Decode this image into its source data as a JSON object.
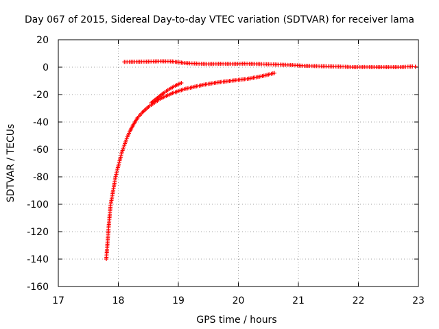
{
  "chart_data": {
    "type": "scatter",
    "title": "Day 067 of 2015, Sidereal Day-to-day VTEC variation (SDTVAR) for receiver lama",
    "xlabel": "GPS time / hours",
    "ylabel": "SDTVAR / TECUs",
    "xlim": [
      17,
      23
    ],
    "ylim": [
      -160,
      20
    ],
    "xticks": [
      "17",
      "18",
      "19",
      "20",
      "21",
      "22",
      "23"
    ],
    "yticks": [
      "20",
      "0",
      "-20",
      "-40",
      "-60",
      "-80",
      "-100",
      "-120",
      "-140",
      "-160"
    ],
    "grid": true,
    "marker": "+",
    "color": "#ff0000",
    "series": [
      {
        "points": [
          [
            18.1,
            3.8
          ],
          [
            18.3,
            4.0
          ],
          [
            18.5,
            4.1
          ],
          [
            18.7,
            4.3
          ],
          [
            18.9,
            4.2
          ],
          [
            19.1,
            3.0
          ],
          [
            19.3,
            2.6
          ],
          [
            19.5,
            2.3
          ],
          [
            19.7,
            2.5
          ],
          [
            19.9,
            2.4
          ],
          [
            20.1,
            2.6
          ],
          [
            20.3,
            2.4
          ],
          [
            20.5,
            2.1
          ],
          [
            20.7,
            1.8
          ],
          [
            20.9,
            1.5
          ],
          [
            21.1,
            1.0
          ],
          [
            21.3,
            0.8
          ],
          [
            21.5,
            0.6
          ],
          [
            21.7,
            0.4
          ],
          [
            21.9,
            0.0
          ],
          [
            22.1,
            0.1
          ],
          [
            22.3,
            0.0
          ],
          [
            22.5,
            0.0
          ],
          [
            22.7,
            0.0
          ],
          [
            22.9,
            0.5
          ],
          [
            22.95,
            0.3
          ]
        ]
      },
      {
        "points": [
          [
            17.8,
            -140
          ],
          [
            17.81,
            -134
          ],
          [
            17.82,
            -128
          ],
          [
            17.83,
            -122
          ],
          [
            17.84,
            -116
          ],
          [
            17.85,
            -111
          ],
          [
            17.86,
            -106
          ],
          [
            17.87,
            -101
          ],
          [
            17.89,
            -96
          ],
          [
            17.91,
            -91
          ],
          [
            17.93,
            -86
          ],
          [
            17.95,
            -81
          ],
          [
            17.97,
            -77
          ],
          [
            18.0,
            -72
          ],
          [
            18.03,
            -67
          ],
          [
            18.06,
            -62
          ],
          [
            18.1,
            -57
          ],
          [
            18.14,
            -52
          ],
          [
            18.19,
            -47
          ],
          [
            18.25,
            -42
          ],
          [
            18.32,
            -37
          ],
          [
            18.4,
            -33
          ],
          [
            18.5,
            -29
          ],
          [
            18.6,
            -26
          ],
          [
            18.7,
            -23
          ],
          [
            18.8,
            -21
          ],
          [
            18.9,
            -19
          ],
          [
            19.0,
            -17.5
          ],
          [
            19.1,
            -16
          ],
          [
            19.25,
            -14.5
          ],
          [
            19.4,
            -13
          ],
          [
            19.6,
            -11.5
          ],
          [
            19.8,
            -10.3
          ],
          [
            20.0,
            -9.3
          ],
          [
            20.2,
            -8.2
          ],
          [
            20.4,
            -6.5
          ],
          [
            20.6,
            -4.3
          ]
        ]
      },
      {
        "points": [
          [
            18.55,
            -26
          ],
          [
            18.65,
            -22.5
          ],
          [
            18.75,
            -19
          ],
          [
            18.85,
            -16
          ],
          [
            18.95,
            -13.5
          ],
          [
            19.05,
            -11.5
          ]
        ]
      }
    ]
  }
}
